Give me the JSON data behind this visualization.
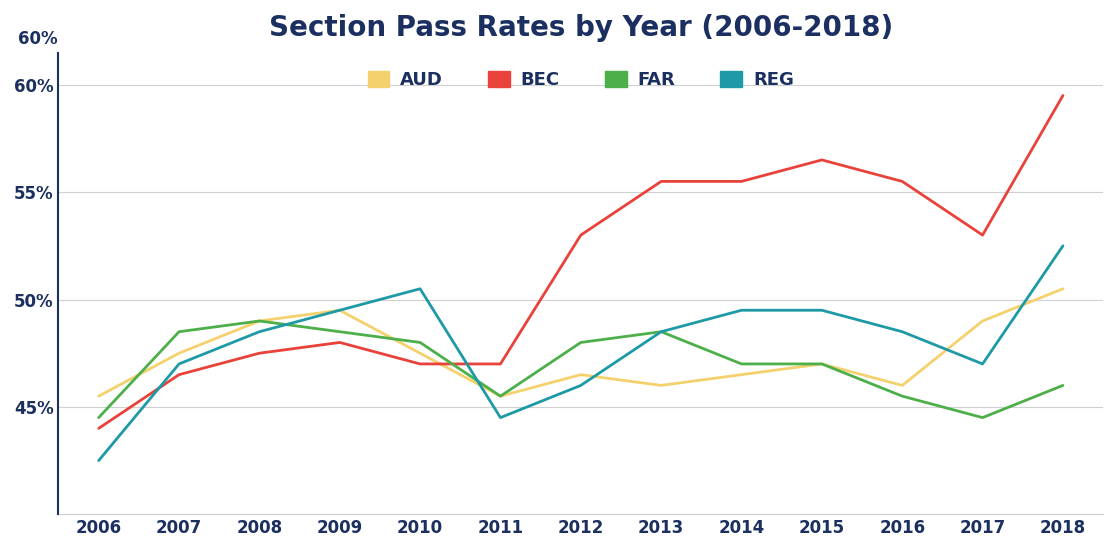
{
  "title": "Section Pass Rates by Year (2006-2018)",
  "years": [
    2006,
    2007,
    2008,
    2009,
    2010,
    2011,
    2012,
    2013,
    2014,
    2015,
    2016,
    2017,
    2018
  ],
  "series_order": [
    "AUD",
    "BEC",
    "FAR",
    "REG"
  ],
  "series": {
    "AUD": {
      "values": [
        45.5,
        47.5,
        49.0,
        49.5,
        47.5,
        45.5,
        46.5,
        46.0,
        46.5,
        47.0,
        46.0,
        49.0,
        50.5
      ],
      "color": "#F5D16E",
      "linewidth": 2.0
    },
    "BEC": {
      "values": [
        44.0,
        46.5,
        47.5,
        48.0,
        47.0,
        47.0,
        53.0,
        55.5,
        55.5,
        56.5,
        55.5,
        53.0,
        59.5
      ],
      "color": "#E8423A",
      "linewidth": 2.0
    },
    "FAR": {
      "values": [
        44.5,
        48.5,
        49.0,
        48.5,
        48.0,
        45.5,
        48.0,
        48.5,
        47.0,
        47.0,
        45.5,
        44.5,
        46.0
      ],
      "color": "#4DAF4A",
      "linewidth": 2.0
    },
    "REG": {
      "values": [
        42.5,
        47.0,
        48.5,
        49.5,
        50.5,
        44.5,
        46.0,
        48.5,
        49.5,
        49.5,
        48.5,
        47.0,
        52.5
      ],
      "color": "#1D9AA6",
      "linewidth": 2.0
    }
  },
  "ylim": [
    40.0,
    61.5
  ],
  "yticks": [
    45,
    50,
    55,
    60
  ],
  "ytick_labels": [
    "45%",
    "50%",
    "55%",
    "60%"
  ],
  "top_label": "60%",
  "background_color": "#ffffff",
  "title_color": "#1B3060",
  "tick_color": "#1B3060",
  "title_fontsize": 20,
  "tick_fontsize": 12,
  "legend_fontsize": 13,
  "axis_label_color": "#444444",
  "grid_color": "#d0d0d0",
  "left_spine_color": "#1B3060"
}
